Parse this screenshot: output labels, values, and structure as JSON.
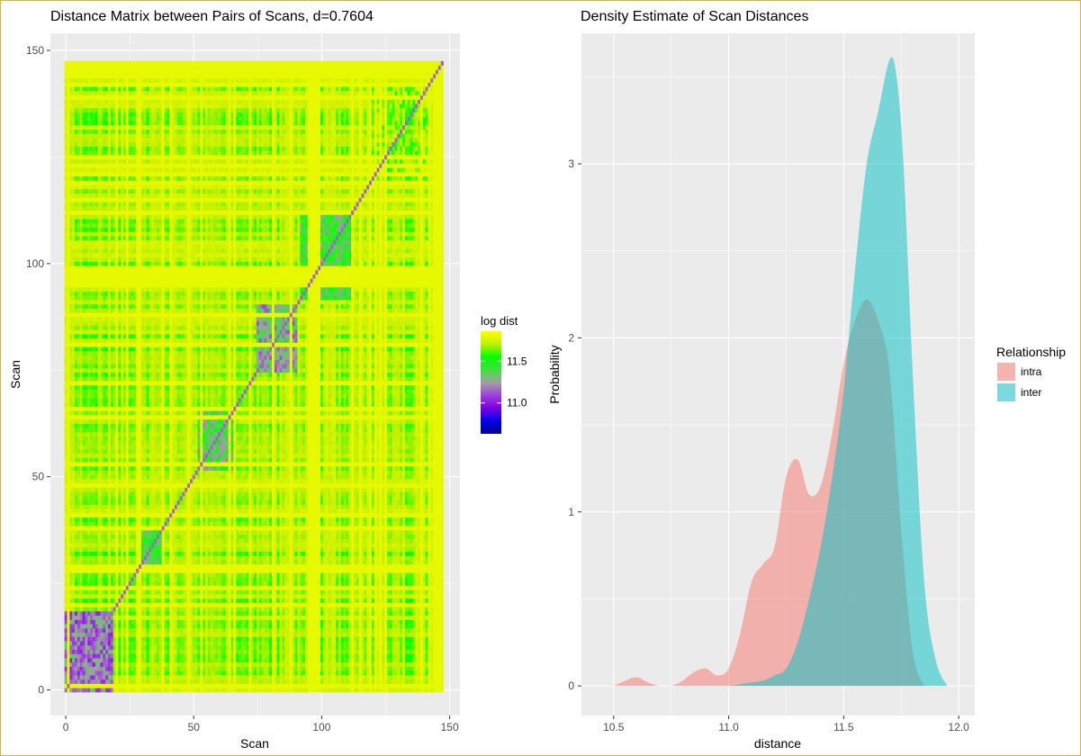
{
  "chart_data": [
    {
      "type": "heatmap",
      "title": "Distance Matrix between Pairs of Scans, d=0.7604",
      "xlabel": "Scan",
      "ylabel": "Scan",
      "xlim": [
        -6,
        154
      ],
      "ylim": [
        -6,
        154
      ],
      "xticks": [
        0,
        50,
        100,
        150
      ],
      "yticks": [
        0,
        50,
        100,
        150
      ],
      "n_scans": 148,
      "legend": {
        "title": "log dist",
        "ticks": [
          11.0,
          11.5
        ],
        "range": [
          10.63,
          11.86
        ],
        "colors": [
          "#00008b",
          "#0000ee",
          "#7b00e0",
          "#a040e0",
          "#a0a0a0",
          "#40e040",
          "#00ff00",
          "#c0f000",
          "#ffff00"
        ],
        "placement": "right"
      },
      "blocks": [
        {
          "start": 0,
          "end": 18,
          "value": 11.0
        },
        {
          "start": 28,
          "end": 38,
          "value": 11.25
        },
        {
          "start": 52,
          "end": 65,
          "value": 11.2
        },
        {
          "start": 75,
          "end": 90,
          "value": 11.1
        },
        {
          "start": 92,
          "end": 112,
          "value": 11.25
        },
        {
          "start": 120,
          "end": 140,
          "value": 11.55
        }
      ],
      "grid": true
    },
    {
      "type": "area",
      "title": "Density Estimate of Scan Distances",
      "xlabel": "distance",
      "ylabel": "Probability",
      "xlim": [
        10.36,
        12.07
      ],
      "ylim": [
        -0.17,
        3.75
      ],
      "xticks": [
        10.5,
        11.0,
        11.5,
        12.0
      ],
      "xtick_labels": [
        "10.5",
        "11.0",
        "11.5",
        "12.0"
      ],
      "yticks": [
        0,
        1,
        2,
        3
      ],
      "legend": {
        "title": "Relationship",
        "placement": "right"
      },
      "series": [
        {
          "name": "intra",
          "color": "#f8766d",
          "x": [
            10.5,
            10.55,
            10.6,
            10.65,
            10.7,
            10.75,
            10.8,
            10.85,
            10.9,
            10.95,
            11.0,
            11.05,
            11.1,
            11.15,
            11.2,
            11.25,
            11.3,
            11.35,
            11.4,
            11.45,
            11.5,
            11.55,
            11.6,
            11.65,
            11.7,
            11.75,
            11.8,
            11.85
          ],
          "values": [
            0.0,
            0.03,
            0.05,
            0.02,
            0.0,
            0.0,
            0.03,
            0.08,
            0.1,
            0.06,
            0.1,
            0.3,
            0.6,
            0.7,
            0.8,
            1.2,
            1.3,
            1.1,
            1.15,
            1.45,
            1.85,
            2.1,
            2.22,
            2.1,
            1.8,
            0.9,
            0.2,
            0.0
          ]
        },
        {
          "name": "inter",
          "color": "#00bfc4",
          "x": [
            10.75,
            10.8,
            10.85,
            10.9,
            10.95,
            11.0,
            11.05,
            11.1,
            11.15,
            11.2,
            11.25,
            11.3,
            11.35,
            11.4,
            11.45,
            11.5,
            11.55,
            11.6,
            11.65,
            11.7,
            11.73,
            11.76,
            11.8,
            11.85,
            11.9,
            11.95
          ],
          "values": [
            0.0,
            0.0,
            0.0,
            0.0,
            0.0,
            0.0,
            0.01,
            0.02,
            0.03,
            0.06,
            0.1,
            0.25,
            0.5,
            0.8,
            1.2,
            1.7,
            2.4,
            3.0,
            3.3,
            3.6,
            3.5,
            3.0,
            1.8,
            0.6,
            0.15,
            0.0
          ]
        }
      ],
      "grid": true
    }
  ]
}
